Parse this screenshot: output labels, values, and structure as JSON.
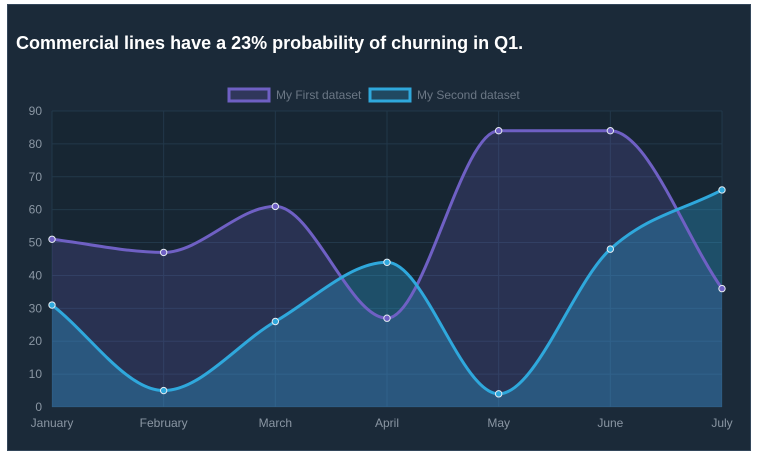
{
  "title": "Commercial lines have a 23% probability of churning in Q1.",
  "colors": {
    "background": "#1b2a39",
    "plot_background": "#172633",
    "grid": "#22384a",
    "series_1": "#6f60c4",
    "series_2": "#2fa8dc",
    "tick_text": "#8a96a3",
    "legend_text": "#6b7785"
  },
  "chart_data": {
    "type": "area",
    "title": "Commercial lines have a 23% probability of churning in Q1.",
    "categories": [
      "January",
      "February",
      "March",
      "April",
      "May",
      "June",
      "July"
    ],
    "series": [
      {
        "name": "My First dataset",
        "values": [
          51,
          47,
          61,
          27,
          84,
          84,
          36
        ],
        "color": "#6f60c4"
      },
      {
        "name": "My Second dataset",
        "values": [
          31,
          5,
          26,
          44,
          4,
          48,
          66
        ],
        "color": "#2fa8dc"
      }
    ],
    "y_ticks": [
      0,
      10,
      20,
      30,
      40,
      50,
      60,
      70,
      80,
      90
    ],
    "ylim": [
      0,
      90
    ],
    "grid": true,
    "legend_position": "top-center",
    "smooth": true,
    "filled": true
  }
}
